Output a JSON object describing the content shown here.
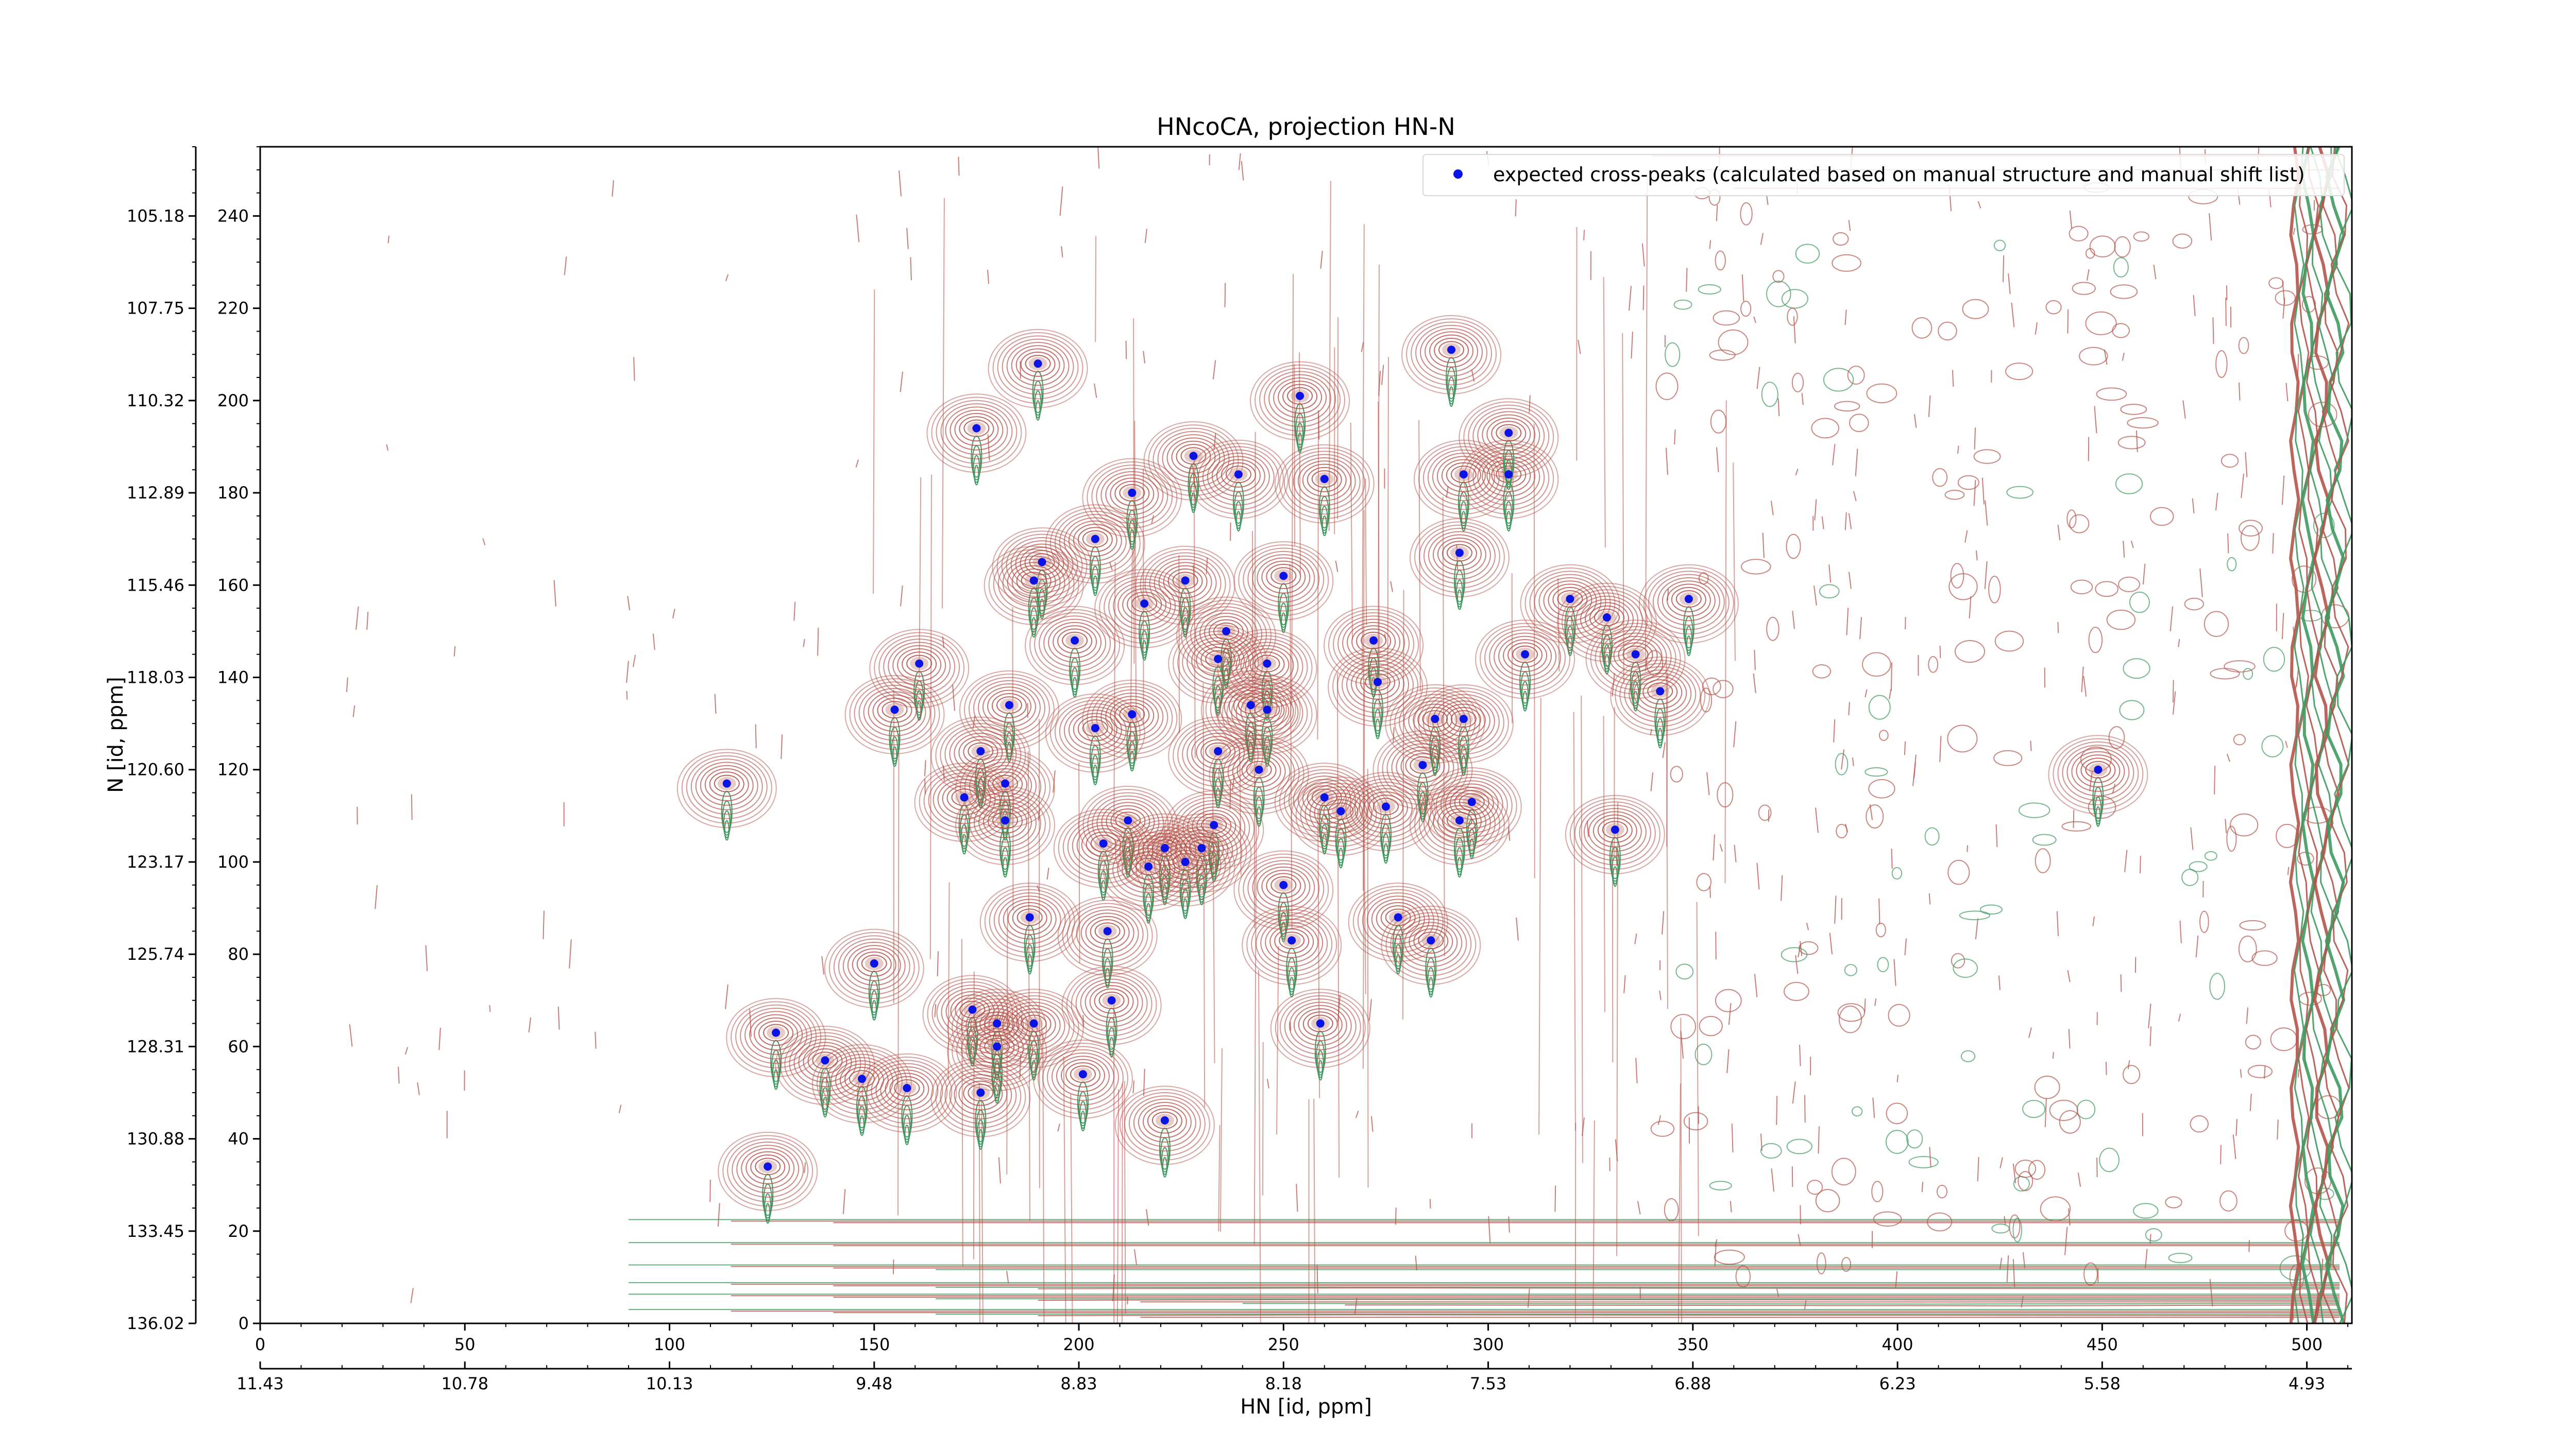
{
  "chart_data": {
    "type": "scatter",
    "title": "HNcoCA, projection HN-N",
    "xlabel": "HN [id, ppm]",
    "ylabel": "N [id, ppm]",
    "xlim": [
      0,
      511
    ],
    "ylim": [
      0,
      255
    ],
    "x_ticks": [
      0,
      50,
      100,
      150,
      200,
      250,
      300,
      350,
      400,
      450,
      500
    ],
    "y_ticks": [
      0,
      20,
      40,
      60,
      80,
      100,
      120,
      140,
      160,
      180,
      200,
      220,
      240
    ],
    "x_ppm_ticks": [
      "11.43",
      "10.78",
      "10.13",
      "9.48",
      "8.83",
      "8.18",
      "7.53",
      "6.88",
      "6.23",
      "5.58",
      "4.93"
    ],
    "y_ppm_ticks": [
      "136.02",
      "133.45",
      "130.88",
      "128.31",
      "125.74",
      "123.17",
      "120.60",
      "118.03",
      "115.46",
      "112.89",
      "110.32",
      "107.75",
      "105.18"
    ],
    "legend": {
      "label": "expected cross-peaks (calculated based on manual structure and manual shift list)",
      "placement": "top-right"
    },
    "grid": false,
    "colors": {
      "positive_contour": "#b5544a",
      "negative_contour": "#3f9a62",
      "marker": "#0a14e6"
    },
    "series": [
      {
        "name": "expected cross-peaks (calculated based on manual structure and manual shift list)",
        "points": [
          [
            190,
            208
          ],
          [
            254,
            201
          ],
          [
            175,
            194
          ],
          [
            291,
            211
          ],
          [
            228,
            188
          ],
          [
            239,
            184
          ],
          [
            260,
            183
          ],
          [
            294,
            184
          ],
          [
            305,
            184
          ],
          [
            305,
            193
          ],
          [
            213,
            180
          ],
          [
            204,
            170
          ],
          [
            191,
            165
          ],
          [
            189,
            161
          ],
          [
            250,
            162
          ],
          [
            226,
            161
          ],
          [
            216,
            156
          ],
          [
            293,
            167
          ],
          [
            320,
            157
          ],
          [
            329,
            153
          ],
          [
            349,
            157
          ],
          [
            236,
            150
          ],
          [
            234,
            144
          ],
          [
            246,
            143
          ],
          [
            272,
            148
          ],
          [
            199,
            148
          ],
          [
            161,
            143
          ],
          [
            309,
            145
          ],
          [
            336,
            145
          ],
          [
            342,
            137
          ],
          [
            273,
            139
          ],
          [
            183,
            134
          ],
          [
            155,
            133
          ],
          [
            213,
            132
          ],
          [
            242,
            134
          ],
          [
            246,
            133
          ],
          [
            287,
            131
          ],
          [
            294,
            131
          ],
          [
            204,
            129
          ],
          [
            176,
            124
          ],
          [
            234,
            124
          ],
          [
            244,
            120
          ],
          [
            284,
            121
          ],
          [
            114,
            117
          ],
          [
            182,
            117
          ],
          [
            172,
            114
          ],
          [
            260,
            114
          ],
          [
            264,
            111
          ],
          [
            275,
            112
          ],
          [
            296,
            113
          ],
          [
            293,
            109
          ],
          [
            182,
            109
          ],
          [
            212,
            109
          ],
          [
            233,
            108
          ],
          [
            230,
            103
          ],
          [
            206,
            104
          ],
          [
            221,
            103
          ],
          [
            226,
            100
          ],
          [
            217,
            99
          ],
          [
            331,
            107
          ],
          [
            250,
            95
          ],
          [
            188,
            88
          ],
          [
            278,
            88
          ],
          [
            207,
            85
          ],
          [
            252,
            83
          ],
          [
            286,
            83
          ],
          [
            150,
            78
          ],
          [
            208,
            70
          ],
          [
            174,
            68
          ],
          [
            180,
            65
          ],
          [
            189,
            65
          ],
          [
            126,
            63
          ],
          [
            259,
            65
          ],
          [
            180,
            60
          ],
          [
            138,
            57
          ],
          [
            147,
            53
          ],
          [
            158,
            51
          ],
          [
            201,
            54
          ],
          [
            176,
            50
          ],
          [
            221,
            44
          ],
          [
            124,
            34
          ],
          [
            449,
            120
          ]
        ]
      }
    ]
  }
}
